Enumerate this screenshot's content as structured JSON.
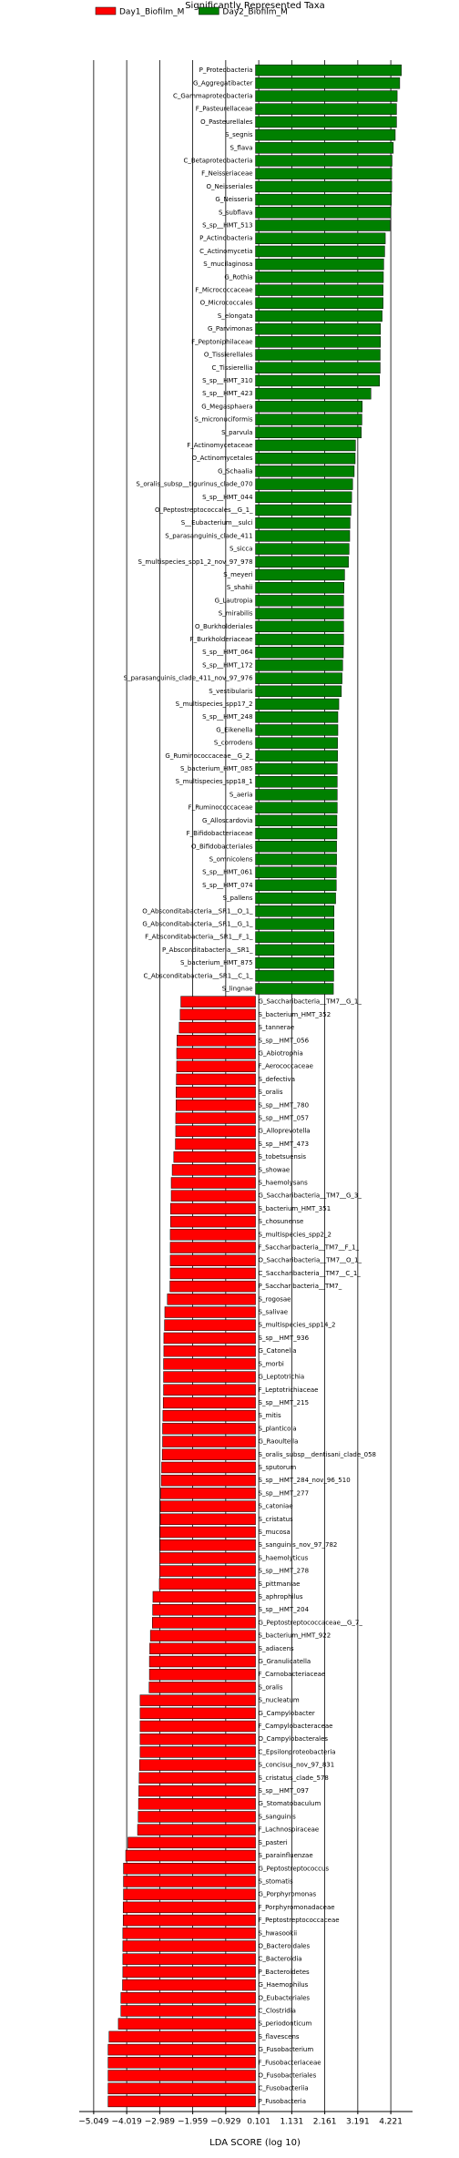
{
  "chart_data": {
    "type": "hbar-diverging",
    "title": "Significantly Represented Taxa",
    "xlabel": "LDA SCORE (log 10)",
    "xlim": [
      -5.5,
      4.9
    ],
    "xticks": [
      {
        "value": -5.049,
        "label": "−5.049"
      },
      {
        "value": -4.019,
        "label": "−4.019"
      },
      {
        "value": -2.989,
        "label": "−2.989"
      },
      {
        "value": -1.959,
        "label": "−1.959"
      },
      {
        "value": -0.929,
        "label": "−0.929"
      },
      0.101,
      1.131,
      2.161,
      3.191,
      4.221
    ],
    "grid": true,
    "series": [
      {
        "name": "Day1_Biofilm_M",
        "color": "#ff0000",
        "categories": [
          "G_Saccharibacteria__TM7__G_1_",
          "S_bacterium_HMT_352",
          "S_tannerae",
          "S_sp__HMT_056",
          "G_Abiotrophia",
          "F_Aerococcaceae",
          "S_defectiva",
          "S_oralis",
          "S_sp__HMT_780",
          "S_sp__HMT_057",
          "G_Alloprevotella",
          "S_sp__HMT_473",
          "S_tobetsuensis",
          "S_showae",
          "S_haemolysans",
          "G_Saccharibacteria__TM7__G_3_",
          "S_bacterium_HMT_351",
          "S_chosunense",
          "S_multispecies_spp2_2",
          "F_Saccharibacteria__TM7__F_1_",
          "O_Saccharibacteria__TM7__O_1_",
          "C_Saccharibacteria__TM7__C_1_",
          "P_Saccharibacteria__TM7_",
          "S_rogosae",
          "S_salivae",
          "S_multispecies_spp14_2",
          "S_sp__HMT_936",
          "G_Catonella",
          "S_morbi",
          "G_Leptotrichia",
          "F_Leptotrichiaceae",
          "S_sp__HMT_215",
          "S_mitis",
          "S_planticola",
          "G_Raoultella",
          "S_oralis_subsp__dentisani_clade_058",
          "S_sputorum",
          "S_sp__HMT_284_nov_96_510",
          "S_sp__HMT_277",
          "S_catoniae",
          "S_cristatus",
          "S_mucosa",
          "S_sanguinis_nov_97_782",
          "S_haemolyticus",
          "S_sp__HMT_278",
          "S_pittmaniae",
          "S_aphrophilus",
          "S_sp__HMT_204",
          "G_Peptostreptococcaceae__G_7_",
          "S_bacterium_HMT_922",
          "S_adiacens",
          "G_Granulicatella",
          "F_Carnobacteriaceae",
          "S_oralis",
          "S_nucleatum",
          "G_Campylobacter",
          "F_Campylobacteraceae",
          "O_Campylobacterales",
          "C_Epsilonproteobacteria",
          "S_concisus_nov_97_831",
          "S_cristatus_clade_578",
          "S_sp__HMT_097",
          "G_Stomatobaculum",
          "S_sanguinis",
          "F_Lachnospiraceae",
          "S_pasteri",
          "S_parainfluenzae",
          "G_Peptostreptococcus",
          "S_stomatis",
          "G_Porphyromonas",
          "F_Porphyromonadaceae",
          "F_Peptostreptococcaceae",
          "S_hwasookii",
          "O_Bacteroidales",
          "C_Bacteroidia",
          "P_Bacteroidetes",
          "G_Haemophilus",
          "O_Eubacteriales",
          "C_Clostridia",
          "S_periodonticum",
          "S_flavescens",
          "G_Fusobacterium",
          "F_Fusobacteriaceae",
          "O_Fusobacteriales",
          "C_Fusobacteriia",
          "P_Fusobacteria"
        ],
        "values": [
          -2.33,
          -2.35,
          -2.38,
          -2.45,
          -2.46,
          -2.46,
          -2.47,
          -2.48,
          -2.48,
          -2.49,
          -2.49,
          -2.5,
          -2.55,
          -2.6,
          -2.63,
          -2.63,
          -2.65,
          -2.65,
          -2.66,
          -2.66,
          -2.66,
          -2.66,
          -2.67,
          -2.75,
          -2.83,
          -2.84,
          -2.86,
          -2.86,
          -2.87,
          -2.87,
          -2.87,
          -2.88,
          -2.89,
          -2.9,
          -2.9,
          -2.91,
          -2.93,
          -2.94,
          -2.96,
          -2.97,
          -2.97,
          -2.98,
          -2.98,
          -2.99,
          -2.99,
          -3.0,
          -3.2,
          -3.21,
          -3.22,
          -3.28,
          -3.3,
          -3.31,
          -3.31,
          -3.32,
          -3.6,
          -3.6,
          -3.6,
          -3.6,
          -3.6,
          -3.62,
          -3.63,
          -3.64,
          -3.65,
          -3.66,
          -3.68,
          -3.98,
          -4.05,
          -4.12,
          -4.12,
          -4.12,
          -4.13,
          -4.13,
          -4.14,
          -4.14,
          -4.14,
          -4.14,
          -4.15,
          -4.2,
          -4.2,
          -4.28,
          -4.57,
          -4.6,
          -4.6,
          -4.6,
          -4.6,
          -4.6
        ]
      },
      {
        "name": "Day2_Biofilm_M",
        "color": "#008000",
        "categories": [
          "P_Proteobacteria",
          "G_Aggregatibacter",
          "C_Gammaproteobacteria",
          "F_Pasteurellaceae",
          "O_Pasteurellales",
          "S_segnis",
          "S_flava",
          "C_Betaproteobacteria",
          "F_Neisseriaceae",
          "O_Neisseriales",
          "G_Neisseria",
          "S_subflava",
          "S_sp__HMT_513",
          "P_Actinobacteria",
          "C_Actinomycetia",
          "S_mucilaginosa",
          "G_Rothia",
          "F_Micrococcaceae",
          "O_Micrococcales",
          "S_elongata",
          "G_Parvimonas",
          "F_Peptoniphilaceae",
          "O_Tissierellales",
          "C_Tissierellia",
          "S_sp__HMT_310",
          "S_sp__HMT_423",
          "G_Megasphaera",
          "S_micronuciformis",
          "S_parvula",
          "F_Actinomycetaceae",
          "O_Actinomycetales",
          "G_Schaalia",
          "S_oralis_subsp__tigurinus_clade_070",
          "S_sp__HMT_044",
          "O_Peptostreptococcales__G_1_",
          "S__Eubacterium__sulci",
          "S_parasanguinis_clade_411",
          "S_sicca",
          "S_multispecies_spp1_2_nov_97_978",
          "S_meyeri",
          "S_shahii",
          "G_Lautropia",
          "S_mirabilis",
          "O_Burkholderiales",
          "F_Burkholderiaceae",
          "S_sp__HMT_064",
          "S_sp__HMT_172",
          "S_parasanguinis_clade_411_nov_97_976",
          "S_vestibularis",
          "S_multispecies_spp17_2",
          "S_sp__HMT_248",
          "G_Eikenella",
          "S_corrodens",
          "G_Ruminococcaceae__G_2_",
          "S_bacterium_HMT_085",
          "S_multispecies_spp18_1",
          "S_aeria",
          "F_Ruminococcaceae",
          "G_Alloscardovia",
          "F_Bifidobacteriaceae",
          "O_Bifidobacteriales",
          "S_omnicolens",
          "S_sp__HMT_061",
          "S_sp__HMT_074",
          "S_pallens",
          "O_Absconditabacteria__SR1__O_1_",
          "G_Absconditabacteria__SR1__G_1_",
          "F_Absconditabacteria__SR1__F_1_",
          "P_Absconditabacteria__SR1_",
          "S_bacterium_HMT_875",
          "C_Absconditabacteria__SR1__C_1_",
          "S_lingnae"
        ],
        "values": [
          4.55,
          4.5,
          4.42,
          4.4,
          4.4,
          4.36,
          4.3,
          4.26,
          4.25,
          4.25,
          4.24,
          4.22,
          4.2,
          4.05,
          4.03,
          4.0,
          3.99,
          3.98,
          3.98,
          3.95,
          3.9,
          3.9,
          3.89,
          3.89,
          3.87,
          3.6,
          3.33,
          3.32,
          3.3,
          3.12,
          3.11,
          3.08,
          3.03,
          3.0,
          2.98,
          2.95,
          2.94,
          2.92,
          2.9,
          2.78,
          2.76,
          2.75,
          2.75,
          2.75,
          2.75,
          2.74,
          2.72,
          2.7,
          2.68,
          2.6,
          2.57,
          2.57,
          2.56,
          2.56,
          2.55,
          2.55,
          2.55,
          2.55,
          2.54,
          2.54,
          2.53,
          2.53,
          2.52,
          2.52,
          2.5,
          2.45,
          2.45,
          2.45,
          2.45,
          2.45,
          2.44,
          2.43
        ]
      }
    ]
  }
}
